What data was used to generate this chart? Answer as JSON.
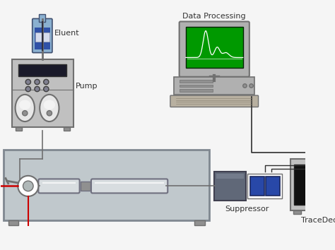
{
  "bg_color": "#f5f5f5",
  "labels": {
    "eluent": "Eluent",
    "pump": "Pump",
    "data_processing": "Data Processing",
    "suppressor": "Suppressor",
    "tracedec": "TraceDec"
  },
  "colors": {
    "gray_dark": "#707070",
    "gray_light": "#c0c0c0",
    "gray_medium": "#909090",
    "gray_box": "#b0b8b8",
    "oven_box": "#c0c8cc",
    "oven_border": "#808890",
    "bottle_blue": "#2040a0",
    "bottle_body": "#8ab0d0",
    "screen_green": "#009900",
    "screen_dark": "#002200",
    "line_color": "#303030",
    "red_line": "#cc0000",
    "tube_color": "#d8dde0",
    "tube_border": "#707080",
    "suppressor_color": "#606878",
    "blue_cell": "#2848a8",
    "tracedec_bg": "#101010",
    "keyboard_color": "#b8b0a0",
    "computer_body": "#b0b0b0",
    "white": "#ffffff"
  },
  "font_size_label": 8,
  "font_size_small": 6
}
